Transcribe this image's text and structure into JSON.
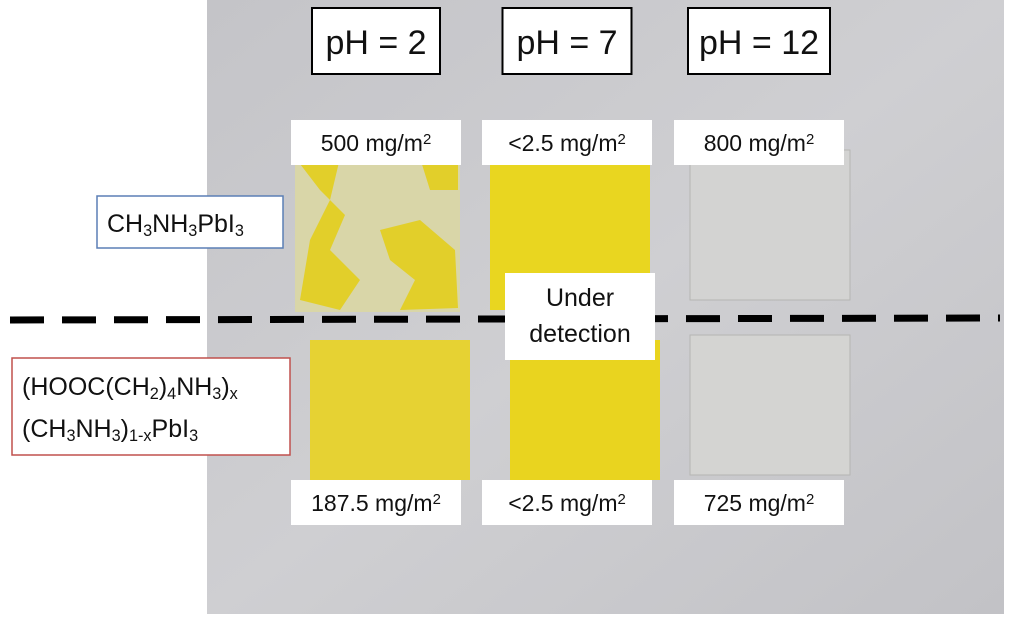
{
  "columns": [
    "pH = 2",
    "pH = 7",
    "pH = 12"
  ],
  "rows": [
    {
      "label": [
        [
          {
            "t": "CH"
          },
          {
            "sub": "3"
          },
          {
            "t": "NH"
          },
          {
            "sub": "3"
          },
          {
            "t": "PbI"
          },
          {
            "sub": "3"
          }
        ]
      ],
      "values": [
        [
          {
            "t": "500 mg/m"
          },
          {
            "sup": "2"
          }
        ],
        [
          {
            "t": "<2.5 mg/m"
          },
          {
            "sup": "2"
          }
        ],
        [
          {
            "t": "800 mg/m"
          },
          {
            "sup": "2"
          }
        ]
      ]
    },
    {
      "label": [
        [
          {
            "t": "(HOOC(CH"
          },
          {
            "sub": "2"
          },
          {
            "t": ")"
          },
          {
            "sub": "4"
          },
          {
            "t": "NH"
          },
          {
            "sub": "3"
          },
          {
            "t": ")"
          },
          {
            "sub": "x"
          }
        ],
        [
          {
            "t": "(CH"
          },
          {
            "sub": "3"
          },
          {
            "t": "NH"
          },
          {
            "sub": "3"
          },
          {
            "t": ")"
          },
          {
            "sub": "1-x"
          },
          {
            "t": "PbI"
          },
          {
            "sub": "3"
          }
        ]
      ],
      "values": [
        [
          {
            "t": "187.5 mg/m"
          },
          {
            "sup": "2"
          }
        ],
        [
          {
            "t": "<2.5 mg/m"
          },
          {
            "sup": "2"
          }
        ],
        [
          {
            "t": "725 mg/m"
          },
          {
            "sup": "2"
          }
        ]
      ]
    }
  ],
  "note": [
    "Under",
    "detection"
  ]
}
